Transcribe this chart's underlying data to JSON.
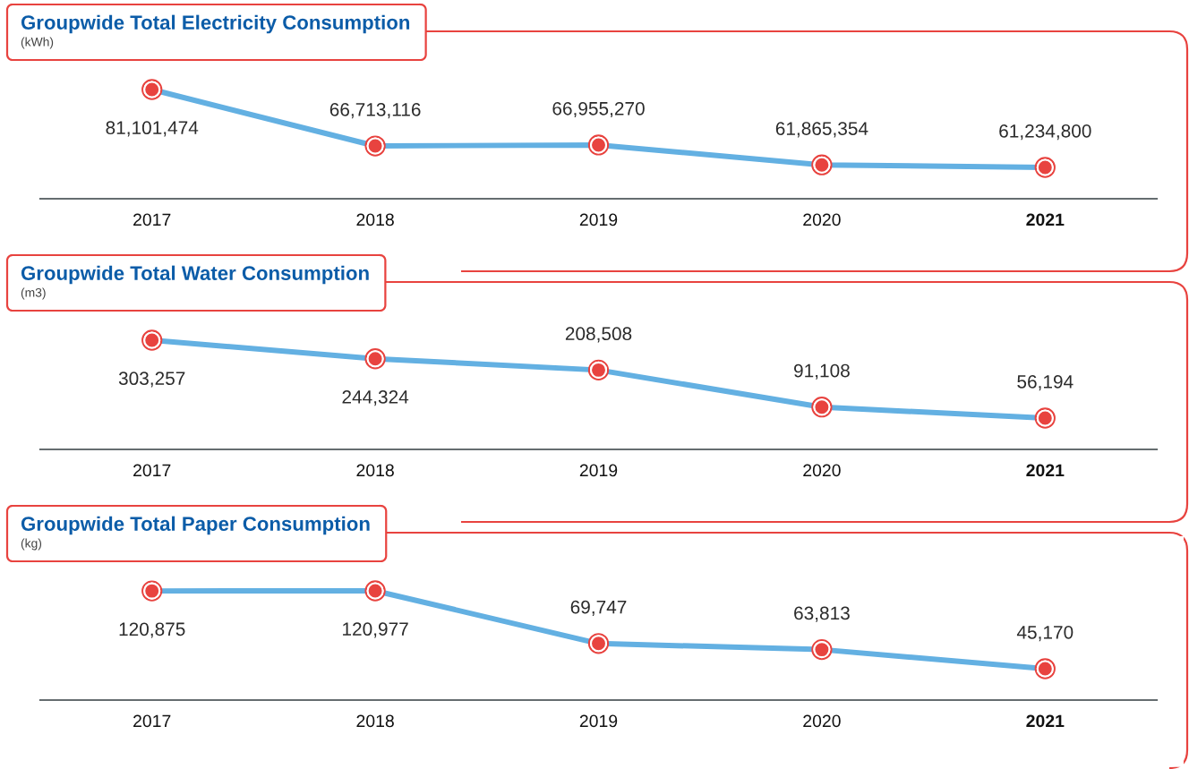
{
  "chart_data": [
    {
      "type": "line",
      "title": "Groupwide Total Electricity Consumption",
      "subtitle": "(kWh)",
      "categories": [
        "2017",
        "2018",
        "2019",
        "2020",
        "2021"
      ],
      "series": [
        {
          "color": "#63b0e2",
          "colors": [
            "#e8433f",
            "#e8433f",
            "#e8433f",
            "#e8433f",
            "#e8433f"
          ],
          "values": [
            81101474,
            66713116,
            66955270,
            61865354,
            61234800
          ],
          "value_labels": [
            "81,101,474",
            "66,713,116",
            "66,955,270",
            "61,865,354",
            "61,234,800"
          ]
        }
      ],
      "tick_labels": "x",
      "marker": "circle",
      "line_style": "solid"
    },
    {
      "type": "line",
      "title": "Groupwide Total Water Consumption",
      "subtitle": "(m3)",
      "categories": [
        "2017",
        "2018",
        "2019",
        "2020",
        "2021"
      ],
      "series": [
        {
          "color": "#63b0e2",
          "colors": [
            "#e8433f",
            "#e8433f",
            "#e8433f",
            "#e8433f",
            "#e8433f"
          ],
          "values": [
            303257,
            244324,
            208508,
            91108,
            56194
          ],
          "value_labels": [
            "303,257",
            "244,324",
            "208,508",
            "91,108",
            "56,194"
          ]
        }
      ],
      "tick_labels": "x",
      "marker": "circle",
      "line_style": "solid"
    },
    {
      "type": "line",
      "title": "Groupwide Total Paper Consumption",
      "subtitle": "(kg)",
      "categories": [
        "2017",
        "2018",
        "2019",
        "2020",
        "2021"
      ],
      "series": [
        {
          "color": "#63b0e2",
          "colors": [
            "#e8433f",
            "#e8433f",
            "#e8433f",
            "#e8433f",
            "#e8433f"
          ],
          "values": [
            120875,
            120977,
            69747,
            63813,
            45170
          ],
          "value_labels": [
            "120,875",
            "120,977",
            "69,747",
            "63,813",
            "45,170"
          ]
        }
      ],
      "tick_labels": "x",
      "marker": "circle",
      "line_style": "solid"
    }
  ]
}
